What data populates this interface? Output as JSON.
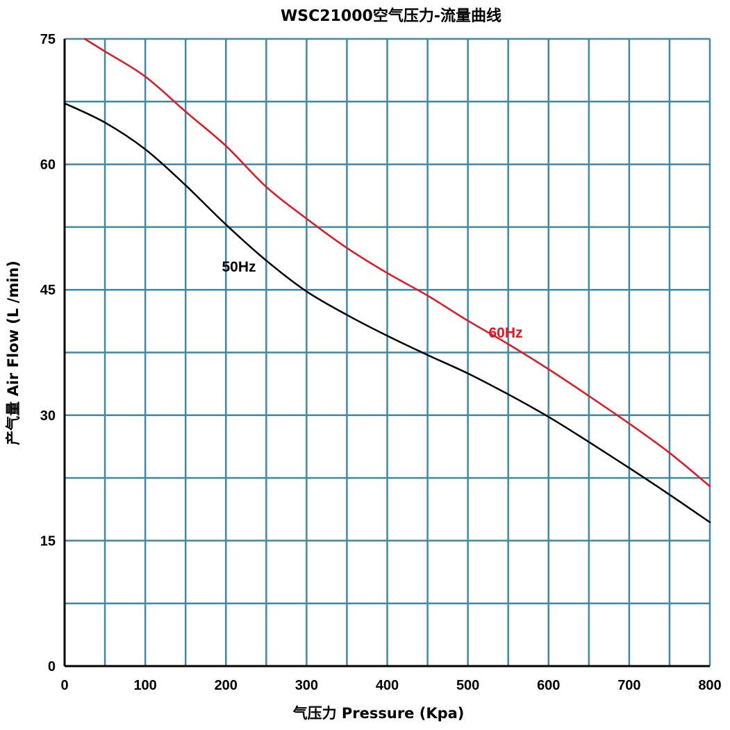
{
  "chart_data": {
    "type": "line",
    "title": "WSC21000空气压力-流量曲线",
    "xlabel": "气压力  Pressure (Kpa)",
    "ylabel": "产气量  Air Flow (L /min)",
    "xlim": [
      0,
      800
    ],
    "ylim": [
      0,
      75
    ],
    "x_ticks": [
      "0",
      "100",
      "200",
      "300",
      "400",
      "500",
      "600",
      "700",
      "800"
    ],
    "y_ticks": [
      "0",
      "15",
      "30",
      "45",
      "60",
      "75"
    ],
    "grid": true,
    "grid_color": "#3d8aa8",
    "series": [
      {
        "name": "50Hz",
        "color": "#000000",
        "x": [
          0,
          50,
          100,
          150,
          200,
          250,
          300,
          350,
          400,
          450,
          500,
          550,
          600,
          650,
          700,
          750,
          800
        ],
        "y": [
          67.3,
          65.0,
          61.8,
          57.5,
          52.8,
          48.5,
          44.8,
          42.0,
          39.5,
          37.2,
          35.0,
          32.5,
          29.8,
          26.8,
          23.7,
          20.5,
          17.2
        ]
      },
      {
        "name": "60Hz",
        "color": "#e8141e",
        "x": [
          25,
          50,
          100,
          150,
          200,
          250,
          300,
          350,
          400,
          450,
          500,
          550,
          600,
          650,
          700,
          750,
          800
        ],
        "y": [
          75.0,
          73.5,
          70.5,
          66.3,
          62.2,
          57.3,
          53.5,
          50.0,
          47.0,
          44.3,
          41.3,
          38.5,
          35.5,
          32.3,
          29.0,
          25.5,
          21.5
        ]
      }
    ],
    "annotations": [
      {
        "text": "50Hz",
        "series": "50Hz"
      },
      {
        "text": "60Hz",
        "series": "60Hz"
      }
    ]
  }
}
